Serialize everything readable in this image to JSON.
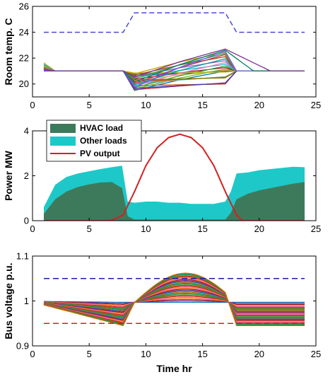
{
  "chart_data": [
    {
      "type": "line",
      "ylabel": "Room temp. C",
      "xlim": [
        0,
        25
      ],
      "ylim": [
        19,
        26
      ],
      "xticks": [
        "0",
        "5",
        "10",
        "15",
        "20",
        "25"
      ],
      "yticks": [
        "20",
        "22",
        "24",
        "26"
      ],
      "setpoint_upper": {
        "x": [
          1,
          8,
          9,
          17,
          18,
          24
        ],
        "y": [
          24,
          24,
          25.5,
          25.5,
          24,
          24
        ],
        "style": "dashed",
        "color": "#4a4ad9"
      },
      "room_temperatures": {
        "x": [
          1,
          2,
          8,
          9,
          13,
          17,
          18,
          24
        ],
        "initial_y": [
          21.7,
          21.0
        ],
        "common_y": 21.0,
        "min_y": 19.5,
        "max_y": 22.7,
        "note_count": 26
      }
    },
    {
      "type": "area",
      "ylabel": "Power MW",
      "xlim": [
        0,
        25
      ],
      "ylim": [
        0,
        4
      ],
      "xticks": [
        "0",
        "5",
        "10",
        "15",
        "20",
        "25"
      ],
      "yticks": [
        "0",
        "2",
        "4"
      ],
      "x": [
        1,
        2,
        3,
        4,
        5,
        6,
        7,
        7.9,
        8.4,
        9,
        10,
        11,
        12,
        13,
        14,
        15,
        16,
        17,
        17.5,
        18,
        19,
        20,
        21,
        22,
        23,
        24
      ],
      "series": [
        {
          "name": "HVAC load",
          "color": "#3d7a5c",
          "values": [
            0.3,
            0.95,
            1.3,
            1.5,
            1.62,
            1.7,
            1.72,
            1.45,
            0.2,
            0.05,
            0.05,
            0.05,
            0.05,
            0.05,
            0.05,
            0.05,
            0.05,
            0.05,
            0.35,
            0.95,
            1.2,
            1.35,
            1.45,
            1.55,
            1.65,
            1.72
          ]
        },
        {
          "name": "Other loads",
          "color": "#1ec8c8",
          "values": [
            0.6,
            1.6,
            1.95,
            2.1,
            2.2,
            2.3,
            2.38,
            2.45,
            0.85,
            0.8,
            0.85,
            0.85,
            0.8,
            0.8,
            0.75,
            0.75,
            0.75,
            0.85,
            1.3,
            2.1,
            2.15,
            2.25,
            2.3,
            2.35,
            2.4,
            2.38
          ]
        },
        {
          "name": "PV output",
          "color": "#d42020",
          "x": [
            6.5,
            7,
            8,
            9,
            10,
            11,
            12,
            13,
            14,
            15,
            16,
            17,
            18,
            18.5
          ],
          "values": [
            0,
            0.02,
            0.25,
            1.3,
            2.45,
            3.25,
            3.7,
            3.85,
            3.7,
            3.25,
            2.45,
            1.3,
            0.25,
            0
          ]
        }
      ]
    },
    {
      "type": "line",
      "xlabel": "Time hr",
      "ylabel": "Bus voltage p.u.",
      "xlim": [
        0,
        25
      ],
      "ylim": [
        0.9,
        1.1
      ],
      "xticks": [
        "0",
        "5",
        "10",
        "15",
        "20",
        "25"
      ],
      "yticks": [
        "0.9",
        "1",
        "1.1"
      ],
      "upper_limit": {
        "value": 1.05,
        "color": "#1a1aa8",
        "style": "dashed"
      },
      "lower_limit": {
        "value": 0.95,
        "color": "#d42020",
        "style": "dashed"
      },
      "bus_voltages": {
        "x": [
          1,
          8,
          9,
          13.5,
          17,
          18,
          24
        ],
        "min_y": 0.945,
        "max_y": 1.062,
        "flat_y": 0.997,
        "note_count": 30
      }
    }
  ]
}
